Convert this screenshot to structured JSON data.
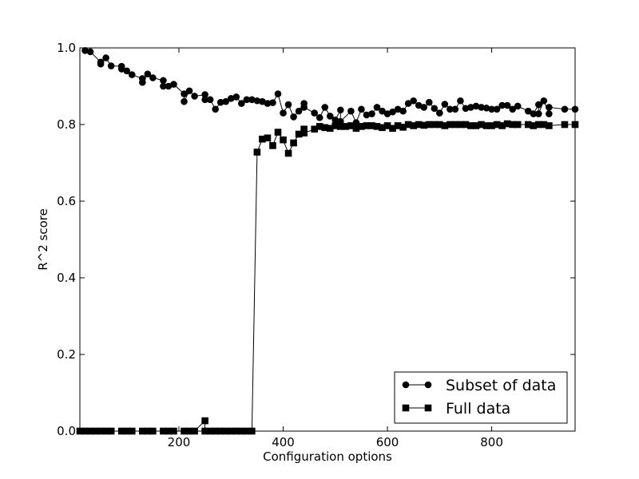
{
  "chart_data": {
    "type": "line",
    "title": "",
    "xlabel": "Configuration options",
    "ylabel": "R^2 score",
    "xlim": [
      10,
      960
    ],
    "ylim": [
      0,
      1
    ],
    "xticks": [
      200,
      400,
      600,
      800
    ],
    "xtick_labels": [
      "200",
      "400",
      "600",
      "800"
    ],
    "yticks": [
      0,
      0.2,
      0.4,
      0.6,
      0.8,
      1.0
    ],
    "ytick_labels": [
      "0.0",
      "0.2",
      "0.4",
      "0.6",
      "0.8",
      "1.0"
    ],
    "grid": false,
    "legend_position": "lower-right",
    "series": [
      {
        "name": "Subset of data",
        "marker": "circle",
        "color": "#000000",
        "points": [
          [
            20,
            0.993
          ],
          [
            30,
            0.99
          ],
          [
            50,
            0.963
          ],
          [
            50,
            0.958
          ],
          [
            60,
            0.974
          ],
          [
            70,
            0.953
          ],
          [
            90,
            0.952
          ],
          [
            90,
            0.945
          ],
          [
            100,
            0.94
          ],
          [
            110,
            0.93
          ],
          [
            130,
            0.92
          ],
          [
            130,
            0.91
          ],
          [
            140,
            0.932
          ],
          [
            150,
            0.922
          ],
          [
            170,
            0.915
          ],
          [
            170,
            0.9
          ],
          [
            180,
            0.9
          ],
          [
            190,
            0.905
          ],
          [
            210,
            0.88
          ],
          [
            210,
            0.86
          ],
          [
            220,
            0.888
          ],
          [
            230,
            0.874
          ],
          [
            250,
            0.878
          ],
          [
            250,
            0.865
          ],
          [
            260,
            0.865
          ],
          [
            270,
            0.84
          ],
          [
            280,
            0.858
          ],
          [
            290,
            0.86
          ],
          [
            300,
            0.868
          ],
          [
            310,
            0.872
          ],
          [
            320,
            0.855
          ],
          [
            330,
            0.865
          ],
          [
            340,
            0.865
          ],
          [
            350,
            0.862
          ],
          [
            360,
            0.86
          ],
          [
            370,
            0.855
          ],
          [
            380,
            0.857
          ],
          [
            390,
            0.88
          ],
          [
            400,
            0.83
          ],
          [
            410,
            0.852
          ],
          [
            420,
            0.82
          ],
          [
            430,
            0.835
          ],
          [
            440,
            0.855
          ],
          [
            440,
            0.845
          ],
          [
            460,
            0.83
          ],
          [
            470,
            0.818
          ],
          [
            480,
            0.845
          ],
          [
            490,
            0.822
          ],
          [
            500,
            0.812
          ],
          [
            510,
            0.838
          ],
          [
            510,
            0.808
          ],
          [
            530,
            0.835
          ],
          [
            540,
            0.805
          ],
          [
            550,
            0.84
          ],
          [
            560,
            0.825
          ],
          [
            570,
            0.828
          ],
          [
            580,
            0.845
          ],
          [
            590,
            0.835
          ],
          [
            600,
            0.828
          ],
          [
            610,
            0.833
          ],
          [
            620,
            0.84
          ],
          [
            630,
            0.835
          ],
          [
            640,
            0.855
          ],
          [
            650,
            0.862
          ],
          [
            660,
            0.85
          ],
          [
            670,
            0.845
          ],
          [
            680,
            0.858
          ],
          [
            690,
            0.842
          ],
          [
            700,
            0.83
          ],
          [
            710,
            0.853
          ],
          [
            720,
            0.84
          ],
          [
            730,
            0.84
          ],
          [
            740,
            0.862
          ],
          [
            750,
            0.842
          ],
          [
            760,
            0.845
          ],
          [
            770,
            0.848
          ],
          [
            780,
            0.845
          ],
          [
            790,
            0.843
          ],
          [
            800,
            0.84
          ],
          [
            810,
            0.84
          ],
          [
            820,
            0.85
          ],
          [
            830,
            0.85
          ],
          [
            840,
            0.84
          ],
          [
            850,
            0.848
          ],
          [
            870,
            0.835
          ],
          [
            880,
            0.828
          ],
          [
            890,
            0.852
          ],
          [
            890,
            0.828
          ],
          [
            900,
            0.862
          ],
          [
            910,
            0.828
          ],
          [
            910,
            0.845
          ],
          [
            940,
            0.84
          ],
          [
            960,
            0.84
          ]
        ]
      },
      {
        "name": "Full data",
        "marker": "square",
        "color": "#000000",
        "points": [
          [
            10,
            0.0
          ],
          [
            20,
            0.0
          ],
          [
            30,
            0.0
          ],
          [
            40,
            0.0
          ],
          [
            50,
            0.0
          ],
          [
            60,
            0.0
          ],
          [
            70,
            0.0
          ],
          [
            90,
            0.0
          ],
          [
            100,
            0.0
          ],
          [
            110,
            0.0
          ],
          [
            130,
            0.0
          ],
          [
            140,
            0.0
          ],
          [
            150,
            0.0
          ],
          [
            170,
            0.0
          ],
          [
            180,
            0.0
          ],
          [
            190,
            0.0
          ],
          [
            210,
            0.0
          ],
          [
            220,
            0.0
          ],
          [
            230,
            0.0
          ],
          [
            250,
            0.027
          ],
          [
            250,
            0.0
          ],
          [
            260,
            0.0
          ],
          [
            270,
            0.0
          ],
          [
            280,
            0.0
          ],
          [
            290,
            0.0
          ],
          [
            300,
            0.0
          ],
          [
            310,
            0.0
          ],
          [
            320,
            0.0
          ],
          [
            330,
            0.0
          ],
          [
            340,
            0.0
          ],
          [
            350,
            0.728
          ],
          [
            360,
            0.762
          ],
          [
            370,
            0.765
          ],
          [
            380,
            0.745
          ],
          [
            390,
            0.78
          ],
          [
            400,
            0.76
          ],
          [
            410,
            0.725
          ],
          [
            420,
            0.752
          ],
          [
            430,
            0.775
          ],
          [
            440,
            0.788
          ],
          [
            440,
            0.778
          ],
          [
            460,
            0.788
          ],
          [
            470,
            0.795
          ],
          [
            480,
            0.792
          ],
          [
            490,
            0.79
          ],
          [
            500,
            0.797
          ],
          [
            510,
            0.795
          ],
          [
            520,
            0.795
          ],
          [
            530,
            0.797
          ],
          [
            540,
            0.79
          ],
          [
            550,
            0.795
          ],
          [
            560,
            0.797
          ],
          [
            570,
            0.797
          ],
          [
            580,
            0.795
          ],
          [
            590,
            0.792
          ],
          [
            600,
            0.797
          ],
          [
            610,
            0.79
          ],
          [
            620,
            0.797
          ],
          [
            630,
            0.793
          ],
          [
            640,
            0.8
          ],
          [
            650,
            0.797
          ],
          [
            660,
            0.8
          ],
          [
            670,
            0.798
          ],
          [
            680,
            0.8
          ],
          [
            690,
            0.8
          ],
          [
            700,
            0.8
          ],
          [
            710,
            0.797
          ],
          [
            720,
            0.8
          ],
          [
            730,
            0.8
          ],
          [
            740,
            0.8
          ],
          [
            750,
            0.8
          ],
          [
            760,
            0.797
          ],
          [
            770,
            0.797
          ],
          [
            780,
            0.8
          ],
          [
            790,
            0.797
          ],
          [
            800,
            0.797
          ],
          [
            810,
            0.8
          ],
          [
            820,
            0.797
          ],
          [
            830,
            0.802
          ],
          [
            840,
            0.8
          ],
          [
            850,
            0.8
          ],
          [
            870,
            0.8
          ],
          [
            880,
            0.797
          ],
          [
            890,
            0.8
          ],
          [
            900,
            0.8
          ],
          [
            910,
            0.797
          ],
          [
            940,
            0.8
          ],
          [
            960,
            0.8
          ]
        ]
      }
    ]
  }
}
